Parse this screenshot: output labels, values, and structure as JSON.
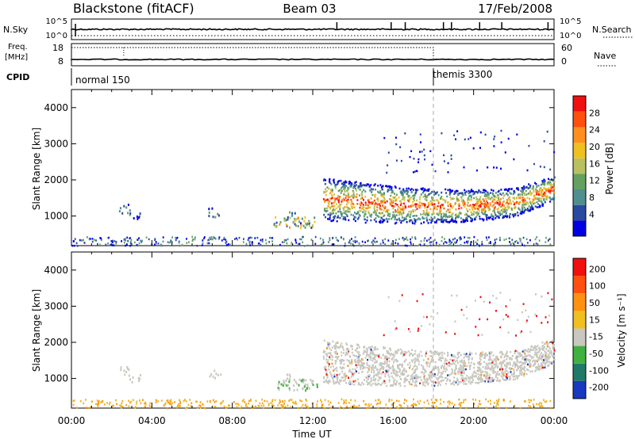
{
  "header": {
    "station": "Blackstone (fitACF)",
    "beam": "Beam 03",
    "date": "17/Feb/2008"
  },
  "chart_data": [
    {
      "type": "line",
      "name": "noise-panel",
      "left_label": "N.Sky",
      "right_label": "N.Search",
      "left_ticks": [
        "10^5",
        "10^0"
      ],
      "right_ticks": [
        "10^5",
        "10^0"
      ]
    },
    {
      "type": "line",
      "name": "freq-panel",
      "left_label_1": "Freq.",
      "left_label_2": "[MHz]",
      "right_label": "Nave",
      "left_ticks": [
        "18",
        "8"
      ],
      "right_ticks": [
        "60",
        "0"
      ]
    },
    {
      "type": "table",
      "name": "cpid-strip",
      "label": "CPID",
      "segments": [
        {
          "start_hour": 0,
          "text": "normal 150"
        },
        {
          "start_hour": 18,
          "text": "themis 3300"
        }
      ]
    },
    {
      "type": "heatmap",
      "name": "power-panel",
      "ylabel": "Slant Range [km]",
      "ylim": [
        180,
        4500
      ],
      "yticks": [
        "1000",
        "2000",
        "3000",
        "4000"
      ],
      "colorbar_label": "Power [dB]",
      "colorbar_ticks": [
        "28",
        "24",
        "20",
        "16",
        "12",
        "8",
        "4"
      ],
      "colors": [
        "#0000e0",
        "#2a4aa0",
        "#4f8f8f",
        "#66a060",
        "#b8c060",
        "#f0c020",
        "#ff9020",
        "#ff5010",
        "#f01010"
      ]
    },
    {
      "type": "heatmap",
      "name": "velocity-panel",
      "ylabel": "Slant Range [km]",
      "ylim": [
        180,
        4500
      ],
      "yticks": [
        "1000",
        "2000",
        "3000",
        "4000"
      ],
      "colorbar_label": "Velocity [m s⁻¹]",
      "colorbar_ticks": [
        "200",
        "100",
        "50",
        "15",
        "-15",
        "-50",
        "-100",
        "-200"
      ],
      "colors": [
        "#1838c0",
        "#207868",
        "#40b040",
        "#c8c8c0",
        "#f0c020",
        "#ff9010",
        "#ff5010",
        "#f01010"
      ]
    }
  ],
  "xaxis": {
    "label": "Time UT",
    "ticks": [
      "00:00",
      "04:00",
      "08:00",
      "12:00",
      "16:00",
      "20:00",
      "00:00"
    ]
  }
}
